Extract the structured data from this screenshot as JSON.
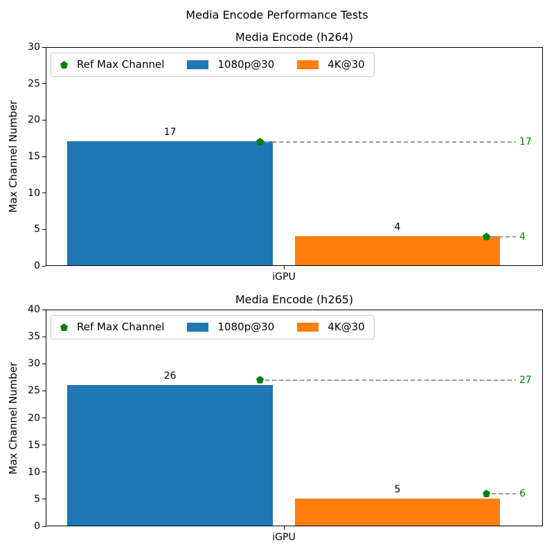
{
  "figure": {
    "suptitle": "Media Encode Performance Tests"
  },
  "chart_data": [
    {
      "type": "bar",
      "title": "Media Encode (h264)",
      "categories": [
        "iGPU"
      ],
      "series": [
        {
          "name": "1080p@30",
          "values": [
            17
          ],
          "color": "#1f77b4"
        },
        {
          "name": "4K@30",
          "values": [
            4
          ],
          "color": "#ff7f0e"
        }
      ],
      "bar_value_labels": [
        17,
        4
      ],
      "ref_markers": {
        "name": "Ref Max Channel",
        "color": "#008000",
        "values": [
          17,
          4
        ]
      },
      "xlabel": "",
      "ylabel": "Max Channel Number",
      "ylim": [
        0,
        30
      ],
      "ytick_step": 5,
      "grid": false,
      "legend_position": "upper left"
    },
    {
      "type": "bar",
      "title": "Media Encode (h265)",
      "categories": [
        "iGPU"
      ],
      "series": [
        {
          "name": "1080p@30",
          "values": [
            26
          ],
          "color": "#1f77b4"
        },
        {
          "name": "4K@30",
          "values": [
            5
          ],
          "color": "#ff7f0e"
        }
      ],
      "bar_value_labels": [
        26,
        5
      ],
      "ref_markers": {
        "name": "Ref Max Channel",
        "color": "#008000",
        "values": [
          27,
          6
        ]
      },
      "xlabel": "",
      "ylabel": "Max Channel Number",
      "ylim": [
        0,
        40
      ],
      "ytick_step": 5,
      "grid": false,
      "legend_position": "upper left"
    }
  ],
  "colors": {
    "series_blue": "#1f77b4",
    "series_orange": "#ff7f0e",
    "ref_green": "#008000",
    "dash_grey": "#999999"
  }
}
